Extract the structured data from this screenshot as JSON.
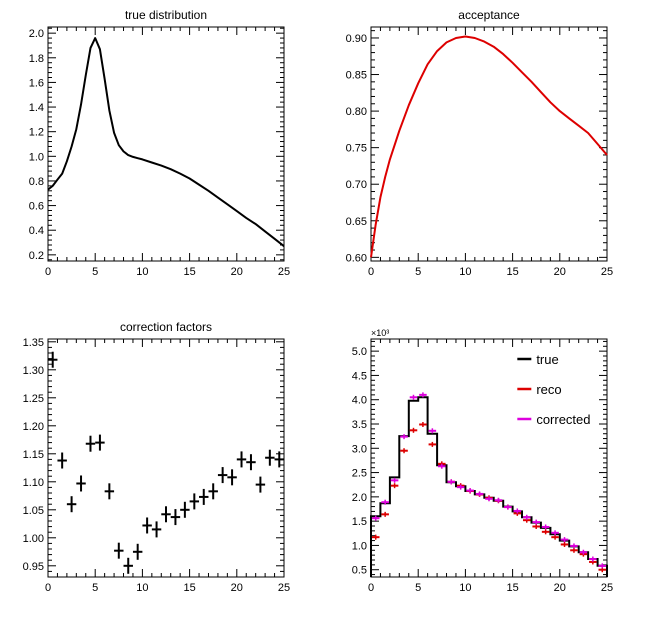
{
  "chart_data": [
    {
      "type": "line",
      "title": "true distribution",
      "xlabel": "",
      "ylabel": "",
      "xlim": [
        0,
        25
      ],
      "ylim": [
        0.15,
        2.05
      ],
      "xticks": [
        "0",
        "5",
        "10",
        "15",
        "20",
        "25"
      ],
      "yticks": [
        "0.2",
        "0.4",
        "0.6",
        "0.8",
        "1.0",
        "1.2",
        "1.4",
        "1.6",
        "1.8",
        "2.0"
      ],
      "grid": false,
      "series": [
        {
          "color": "#000000",
          "x": [
            0,
            0.5,
            1,
            1.5,
            2,
            2.5,
            3,
            3.5,
            4,
            4.5,
            5,
            5.5,
            6,
            6.5,
            7,
            7.5,
            8,
            8.5,
            9,
            9.5,
            10,
            11,
            12,
            13,
            14,
            15,
            16,
            17,
            18,
            19,
            20,
            21,
            22,
            23,
            24,
            25
          ],
          "y": [
            0.73,
            0.76,
            0.81,
            0.86,
            0.96,
            1.08,
            1.22,
            1.42,
            1.66,
            1.88,
            1.96,
            1.87,
            1.63,
            1.37,
            1.19,
            1.09,
            1.04,
            1.01,
            0.995,
            0.985,
            0.975,
            0.95,
            0.925,
            0.895,
            0.86,
            0.82,
            0.77,
            0.72,
            0.665,
            0.61,
            0.555,
            0.5,
            0.45,
            0.39,
            0.33,
            0.27
          ]
        }
      ]
    },
    {
      "type": "line",
      "title": "acceptance",
      "xlabel": "",
      "ylabel": "",
      "xlim": [
        0,
        25
      ],
      "ylim": [
        0.595,
        0.915
      ],
      "xticks": [
        "0",
        "5",
        "10",
        "15",
        "20",
        "25"
      ],
      "yticks": [
        "0.60",
        "0.65",
        "0.70",
        "0.75",
        "0.80",
        "0.85",
        "0.90"
      ],
      "grid": false,
      "series": [
        {
          "color": "#dd0000",
          "x": [
            0,
            0.5,
            1,
            1.5,
            2,
            3,
            4,
            5,
            6,
            7,
            8,
            9,
            10,
            11,
            12,
            13,
            14,
            15,
            16,
            17,
            18,
            19,
            20,
            21,
            22,
            23,
            24,
            25
          ],
          "y": [
            0.6,
            0.645,
            0.682,
            0.71,
            0.734,
            0.773,
            0.808,
            0.838,
            0.864,
            0.882,
            0.894,
            0.9,
            0.902,
            0.9,
            0.895,
            0.888,
            0.878,
            0.866,
            0.853,
            0.84,
            0.826,
            0.812,
            0.8,
            0.79,
            0.78,
            0.77,
            0.755,
            0.74
          ]
        }
      ]
    },
    {
      "type": "scatter",
      "title": "correction factors",
      "xlabel": "",
      "ylabel": "",
      "xlim": [
        0,
        25
      ],
      "ylim": [
        0.93,
        1.355
      ],
      "xticks": [
        "0",
        "5",
        "10",
        "15",
        "20",
        "25"
      ],
      "yticks": [
        "0.95",
        "1.00",
        "1.05",
        "1.10",
        "1.15",
        "1.20",
        "1.25",
        "1.30",
        "1.35"
      ],
      "grid": false,
      "series": [
        {
          "color": "#000000",
          "x": [
            0.5,
            1.5,
            2.5,
            3.5,
            4.5,
            5.5,
            6.5,
            7.5,
            8.5,
            9.5,
            10.5,
            11.5,
            12.5,
            13.5,
            14.5,
            15.5,
            16.5,
            17.5,
            18.5,
            19.5,
            20.5,
            21.5,
            22.5,
            23.5,
            24.5
          ],
          "y": [
            1.318,
            1.138,
            1.06,
            1.097,
            1.168,
            1.17,
            1.083,
            0.977,
            0.95,
            0.975,
            1.022,
            1.015,
            1.042,
            1.037,
            1.05,
            1.065,
            1.073,
            1.083,
            1.112,
            1.108,
            1.14,
            1.135,
            1.095,
            1.143,
            1.14
          ]
        }
      ]
    },
    {
      "type": "bar",
      "title": "",
      "xlabel": "",
      "ylabel": "",
      "y_multiplier": "×10³",
      "xlim": [
        0,
        25
      ],
      "ylim": [
        0.35,
        5.25
      ],
      "xticks": [
        "0",
        "5",
        "10",
        "15",
        "20",
        "25"
      ],
      "yticks": [
        "0.5",
        "1.0",
        "1.5",
        "2.0",
        "2.5",
        "3.0",
        "3.5",
        "4.0",
        "4.5",
        "5.0"
      ],
      "grid": false,
      "legend_position": "top-right",
      "x": [
        0.5,
        1.5,
        2.5,
        3.5,
        4.5,
        5.5,
        6.5,
        7.5,
        8.5,
        9.5,
        10.5,
        11.5,
        12.5,
        13.5,
        14.5,
        15.5,
        16.5,
        17.5,
        18.5,
        19.5,
        20.5,
        21.5,
        22.5,
        23.5,
        24.5
      ],
      "series": [
        {
          "name": "true",
          "color": "#000000",
          "style": "step",
          "values": [
            1.6,
            1.87,
            2.4,
            3.25,
            3.98,
            4.05,
            3.3,
            2.65,
            2.3,
            2.22,
            2.12,
            2.05,
            1.98,
            1.92,
            1.8,
            1.7,
            1.58,
            1.47,
            1.36,
            1.23,
            1.1,
            0.98,
            0.86,
            0.72,
            0.58
          ]
        },
        {
          "name": "reco",
          "color": "#dd0000",
          "style": "marker",
          "values": [
            1.17,
            1.64,
            2.23,
            2.95,
            3.37,
            3.49,
            3.08,
            2.68,
            2.31,
            2.23,
            2.12,
            2.05,
            1.98,
            1.92,
            1.79,
            1.66,
            1.52,
            1.39,
            1.28,
            1.17,
            1.02,
            0.9,
            0.82,
            0.66,
            0.5
          ]
        },
        {
          "name": "corrected",
          "color": "#dd00dd",
          "style": "marker",
          "values": [
            1.56,
            1.89,
            2.34,
            3.24,
            4.05,
            4.1,
            3.36,
            2.63,
            2.31,
            2.2,
            2.13,
            2.06,
            1.96,
            1.93,
            1.79,
            1.71,
            1.58,
            1.48,
            1.38,
            1.26,
            1.12,
            0.99,
            0.86,
            0.72,
            0.58
          ]
        }
      ]
    }
  ]
}
